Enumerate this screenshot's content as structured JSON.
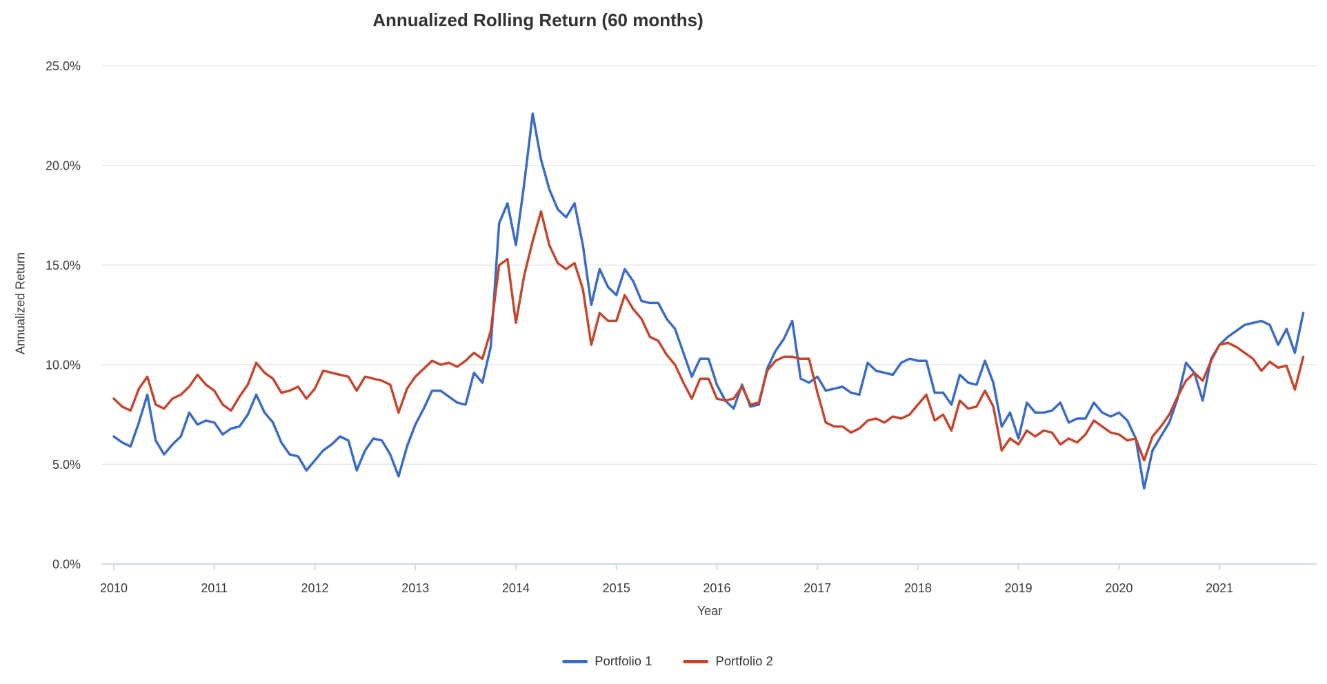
{
  "chart_data": {
    "type": "line",
    "title": "Annualized Rolling Return (60 months)",
    "xlabel": "Year",
    "ylabel": "Annualized Return",
    "frequency": "monthly",
    "x_start": "2010-01",
    "x_end": "2021-11",
    "x_tick_labels": [
      "2010",
      "2011",
      "2012",
      "2013",
      "2014",
      "2015",
      "2016",
      "2017",
      "2018",
      "2019",
      "2020",
      "2021"
    ],
    "y_ticks": [
      "0.0%",
      "5.0%",
      "10.0%",
      "15.0%",
      "20.0%",
      "25.0%"
    ],
    "ylim": [
      0,
      25
    ],
    "unit": "percent",
    "grid": "horizontal",
    "legend_position": "bottom",
    "axis_line_color": "#ccd9e8",
    "gridline_color": "#e5e5e5",
    "series": [
      {
        "name": "Portfolio 1",
        "color": "#3a6bc6",
        "values": [
          6.4,
          6.1,
          5.9,
          7.1,
          8.5,
          6.2,
          5.5,
          6.0,
          6.4,
          7.6,
          7.0,
          7.2,
          7.1,
          6.5,
          6.8,
          6.9,
          7.5,
          8.5,
          7.6,
          7.1,
          6.1,
          5.5,
          5.4,
          4.7,
          5.2,
          5.7,
          6.0,
          6.4,
          6.2,
          4.7,
          5.7,
          6.3,
          6.2,
          5.5,
          4.4,
          5.9,
          7.0,
          7.8,
          8.7,
          8.7,
          8.4,
          8.1,
          8.0,
          9.6,
          9.1,
          10.9,
          17.1,
          18.1,
          16.0,
          19.1,
          22.6,
          20.3,
          18.8,
          17.8,
          17.4,
          18.1,
          16.0,
          13.0,
          14.8,
          13.9,
          13.5,
          14.8,
          14.2,
          13.2,
          13.1,
          13.1,
          12.3,
          11.8,
          10.6,
          9.4,
          10.3,
          10.3,
          9.0,
          8.2,
          7.8,
          9.0,
          7.9,
          8.0,
          9.8,
          10.7,
          11.3,
          12.2,
          9.3,
          9.1,
          9.4,
          8.7,
          8.8,
          8.9,
          8.6,
          8.5,
          10.1,
          9.7,
          9.6,
          9.5,
          10.1,
          10.3,
          10.2,
          10.2,
          8.6,
          8.6,
          8.0,
          9.5,
          9.1,
          9.0,
          10.2,
          9.1,
          6.9,
          7.6,
          6.3,
          8.1,
          7.6,
          7.6,
          7.7,
          8.1,
          7.1,
          7.3,
          7.3,
          8.1,
          7.6,
          7.4,
          7.6,
          7.2,
          6.3,
          3.8,
          5.7,
          6.4,
          7.1,
          8.3,
          10.1,
          9.6,
          8.2,
          10.3,
          11.0,
          11.4,
          11.7,
          12.0,
          12.1,
          12.2,
          12.0,
          11.0,
          11.8,
          10.6,
          12.6
        ]
      },
      {
        "name": "Portfolio 2",
        "color": "#c5462d",
        "values": [
          8.3,
          7.9,
          7.7,
          8.8,
          9.4,
          8.0,
          7.8,
          8.3,
          8.5,
          8.9,
          9.5,
          9.0,
          8.7,
          8.0,
          7.7,
          8.4,
          9.0,
          10.1,
          9.6,
          9.3,
          8.6,
          8.7,
          8.9,
          8.3,
          8.8,
          9.7,
          9.6,
          9.5,
          9.4,
          8.7,
          9.4,
          9.3,
          9.2,
          9.0,
          7.6,
          8.8,
          9.4,
          9.8,
          10.2,
          10.0,
          10.1,
          9.9,
          10.2,
          10.6,
          10.3,
          11.7,
          15.0,
          15.3,
          12.1,
          14.5,
          16.2,
          17.7,
          16.0,
          15.1,
          14.8,
          15.1,
          13.8,
          11.0,
          12.6,
          12.2,
          12.2,
          13.5,
          12.8,
          12.3,
          11.4,
          11.2,
          10.5,
          10.0,
          9.1,
          8.3,
          9.3,
          9.3,
          8.3,
          8.2,
          8.3,
          8.9,
          8.0,
          8.1,
          9.7,
          10.2,
          10.4,
          10.4,
          10.3,
          10.3,
          8.6,
          7.1,
          6.9,
          6.9,
          6.6,
          6.8,
          7.2,
          7.3,
          7.1,
          7.4,
          7.3,
          7.5,
          8.0,
          8.5,
          7.2,
          7.5,
          6.7,
          8.2,
          7.8,
          7.9,
          8.7,
          7.9,
          5.7,
          6.3,
          6.0,
          6.7,
          6.4,
          6.7,
          6.6,
          6.0,
          6.3,
          6.1,
          6.5,
          7.2,
          6.9,
          6.6,
          6.5,
          6.2,
          6.3,
          5.2,
          6.4,
          6.9,
          7.5,
          8.4,
          9.2,
          9.6,
          9.2,
          10.2,
          11.0,
          11.1,
          10.9,
          10.6,
          10.3,
          9.7,
          10.15,
          9.85,
          9.95,
          8.75,
          10.4
        ]
      }
    ]
  }
}
